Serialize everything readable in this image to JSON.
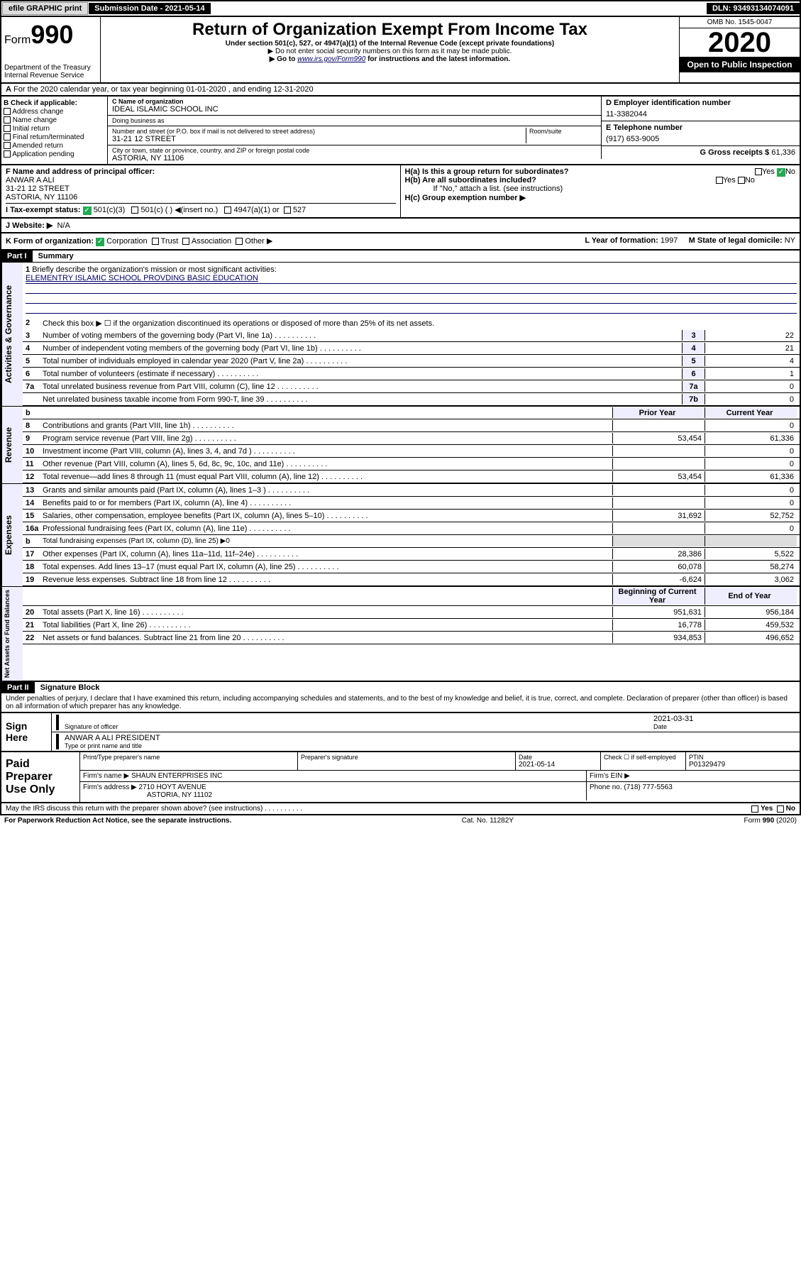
{
  "top": {
    "efile": "efile GRAPHIC print",
    "submission": "Submission Date - 2021-05-14",
    "dln": "DLN: 93493134074091"
  },
  "header": {
    "form": "Form",
    "num": "990",
    "dept": "Department of the Treasury\nInternal Revenue Service",
    "title": "Return of Organization Exempt From Income Tax",
    "sub1": "Under section 501(c), 527, or 4947(a)(1) of the Internal Revenue Code (except private foundations)",
    "sub2": "▶ Do not enter social security numbers on this form as it may be made public.",
    "sub3a": "▶ Go to ",
    "sub3link": "www.irs.gov/Form990",
    "sub3b": " for instructions and the latest information.",
    "omb": "OMB No. 1545-0047",
    "year": "2020",
    "open": "Open to Public Inspection"
  },
  "rowA": {
    "text": "For the 2020 calendar year, or tax year beginning 01-01-2020     , and ending 12-31-2020",
    "prefix": "A"
  },
  "colB": {
    "hdr": "B Check if applicable:",
    "items": [
      "Address change",
      "Name change",
      "Initial return",
      "Final return/terminated",
      "Amended return",
      "Application pending"
    ]
  },
  "colC": {
    "nameLabel": "C Name of organization",
    "name": "IDEAL ISLAMIC SCHOOL INC",
    "dbaLabel": "Doing business as",
    "dba": "",
    "addrLabel": "Number and street (or P.O. box if mail is not delivered to street address)",
    "room": "Room/suite",
    "addr": "31-21 12 STREET",
    "cityLabel": "City or town, state or province, country, and ZIP or foreign postal code",
    "city": "ASTORIA, NY  11106"
  },
  "colDE": {
    "dLabel": "D Employer identification number",
    "d": "11-3382044",
    "eLabel": "E Telephone number",
    "e": "(917) 653-9005",
    "gLabel": "G Gross receipts $ ",
    "g": "61,336"
  },
  "rowF": {
    "fLabel": "F  Name and address of principal officer:",
    "fName": "ANWAR A ALI",
    "fAddr1": "31-21 12 STREET",
    "fAddr2": "ASTORIA, NY  11106",
    "ha": "H(a)  Is this a group return for subordinates?",
    "haYes": "Yes",
    "haNo": "No",
    "hb": "H(b)  Are all subordinates included?",
    "hbYes": "Yes",
    "hbNo": "No",
    "hbNote": "If \"No,\" attach a list. (see instructions)",
    "hc": "H(c)  Group exemption number ▶"
  },
  "rowI": {
    "label": "I    Tax-exempt status:",
    "a": "501(c)(3)",
    "b": "501(c) (   ) ◀(insert no.)",
    "c": "4947(a)(1) or",
    "d": "527"
  },
  "rowJ": {
    "label": "J    Website: ▶",
    "val": "N/A"
  },
  "rowK": {
    "label": "K Form of organization:",
    "corp": "Corporation",
    "trust": "Trust",
    "assoc": "Association",
    "other": "Other ▶",
    "l": "L Year of formation: ",
    "lval": "1997",
    "m": "M State of legal domicile: ",
    "mval": "NY"
  },
  "part1": {
    "hdr": "Part I",
    "title": "Summary",
    "l1": "Briefly describe the organization's mission or most significant activities:",
    "l1val": "ELEMENTRY ISLAMIC SCHOOL PROVDING BASIC EDUCATION",
    "l2": "Check this box ▶ ☐  if the organization discontinued its operations or disposed of more than 25% of its net assets.",
    "lines_gov": [
      {
        "n": "3",
        "t": "Number of voting members of the governing body (Part VI, line 1a)",
        "c": "3",
        "v": "22"
      },
      {
        "n": "4",
        "t": "Number of independent voting members of the governing body (Part VI, line 1b)",
        "c": "4",
        "v": "21"
      },
      {
        "n": "5",
        "t": "Total number of individuals employed in calendar year 2020 (Part V, line 2a)",
        "c": "5",
        "v": "4"
      },
      {
        "n": "6",
        "t": "Total number of volunteers (estimate if necessary)",
        "c": "6",
        "v": "1"
      },
      {
        "n": "7a",
        "t": "Total unrelated business revenue from Part VIII, column (C), line 12",
        "c": "7a",
        "v": "0"
      },
      {
        "n": "",
        "t": "Net unrelated business taxable income from Form 990-T, line 39",
        "c": "7b",
        "v": "0"
      }
    ],
    "yearHdr": {
      "b": "b",
      "prior": "Prior Year",
      "curr": "Current Year"
    },
    "lines_rev": [
      {
        "n": "8",
        "t": "Contributions and grants (Part VIII, line 1h)",
        "p": "",
        "c": "0"
      },
      {
        "n": "9",
        "t": "Program service revenue (Part VIII, line 2g)",
        "p": "53,454",
        "c": "61,336"
      },
      {
        "n": "10",
        "t": "Investment income (Part VIII, column (A), lines 3, 4, and 7d )",
        "p": "",
        "c": "0"
      },
      {
        "n": "11",
        "t": "Other revenue (Part VIII, column (A), lines 5, 6d, 8c, 9c, 10c, and 11e)",
        "p": "",
        "c": "0"
      },
      {
        "n": "12",
        "t": "Total revenue—add lines 8 through 11 (must equal Part VIII, column (A), line 12)",
        "p": "53,454",
        "c": "61,336"
      }
    ],
    "lines_exp": [
      {
        "n": "13",
        "t": "Grants and similar amounts paid (Part IX, column (A), lines 1–3 )",
        "p": "",
        "c": "0"
      },
      {
        "n": "14",
        "t": "Benefits paid to or for members (Part IX, column (A), line 4)",
        "p": "",
        "c": "0"
      },
      {
        "n": "15",
        "t": "Salaries, other compensation, employee benefits (Part IX, column (A), lines 5–10)",
        "p": "31,692",
        "c": "52,752"
      },
      {
        "n": "16a",
        "t": "Professional fundraising fees (Part IX, column (A), line 11e)",
        "p": "",
        "c": "0"
      },
      {
        "n": "b",
        "t": "Total fundraising expenses (Part IX, column (D), line 25) ▶0",
        "p": null,
        "c": null
      },
      {
        "n": "17",
        "t": "Other expenses (Part IX, column (A), lines 11a–11d, 11f–24e)",
        "p": "28,386",
        "c": "5,522"
      },
      {
        "n": "18",
        "t": "Total expenses. Add lines 13–17 (must equal Part IX, column (A), line 25)",
        "p": "60,078",
        "c": "58,274"
      },
      {
        "n": "19",
        "t": "Revenue less expenses. Subtract line 18 from line 12",
        "p": "-6,624",
        "c": "3,062"
      }
    ],
    "netHdr": {
      "prior": "Beginning of Current Year",
      "curr": "End of Year"
    },
    "lines_net": [
      {
        "n": "20",
        "t": "Total assets (Part X, line 16)",
        "p": "951,631",
        "c": "956,184"
      },
      {
        "n": "21",
        "t": "Total liabilities (Part X, line 26)",
        "p": "16,778",
        "c": "459,532"
      },
      {
        "n": "22",
        "t": "Net assets or fund balances. Subtract line 21 from line 20",
        "p": "934,853",
        "c": "496,652"
      }
    ],
    "sides": {
      "gov": "Activities & Governance",
      "rev": "Revenue",
      "exp": "Expenses",
      "net": "Net Assets or Fund Balances"
    }
  },
  "part2": {
    "hdr": "Part II",
    "title": "Signature Block",
    "decl": "Under penalties of perjury, I declare that I have examined this return, including accompanying schedules and statements, and to the best of my knowledge and belief, it is true, correct, and complete. Declaration of preparer (other than officer) is based on all information of which preparer has any knowledge.",
    "signL": "Sign Here",
    "sigOfficer": "Signature of officer",
    "date": "2021-03-31",
    "dateL": "Date",
    "name": "ANWAR A ALI PRESIDENT",
    "nameL": "Type or print name and title",
    "paidL": "Paid Preparer Use Only",
    "pRow1": [
      "Print/Type preparer's name",
      "Preparer's signature",
      "Date",
      "Check ☐ if self-employed",
      "PTIN"
    ],
    "pRow1v": [
      "",
      "",
      "2021-05-14",
      "",
      "P01329479"
    ],
    "firmName": "Firm's name    ▶ SHAUN ENTERPRISES INC",
    "firmEin": "Firm's EIN ▶",
    "firmAddr": "Firm's address ▶ 2710 HOYT AVENUE",
    "firmCity": "ASTORIA, NY  11102",
    "firmPhone": "Phone no. (718) 777-5563",
    "discuss": "May the IRS discuss this return with the preparer shown above? (see instructions)",
    "yes": "Yes",
    "no": "No"
  },
  "footer": {
    "pra": "For Paperwork Reduction Act Notice, see the separate instructions.",
    "cat": "Cat. No. 11282Y",
    "form": "Form 990 (2020)"
  }
}
